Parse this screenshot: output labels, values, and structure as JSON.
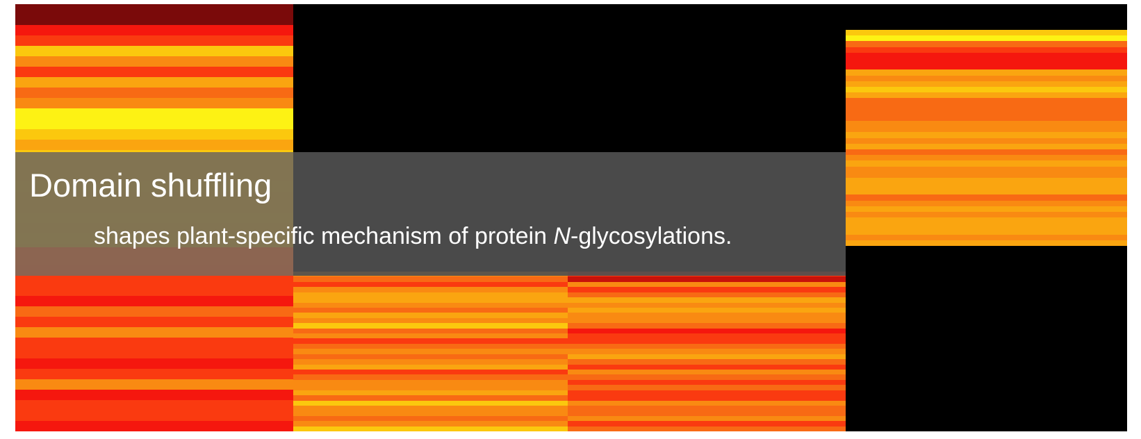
{
  "heading": {
    "title": "Domain shuffling",
    "subtitle_before": "shapes plant-specific mechanism of protein ",
    "subtitle_italic": "N",
    "subtitle_after": "-glycosylations."
  },
  "heatmap_palette": [
    "#7a0a0a",
    "#c8120a",
    "#f5170e",
    "#fa3a10",
    "#f86a14",
    "#f98a12",
    "#faa510",
    "#fbc80e",
    "#fdf214"
  ],
  "chart_data": {
    "type": "heatmap",
    "color_scale": "hot (dark red to yellow)",
    "blocks": [
      {
        "id": "top-left",
        "stripes": [
          0,
          0,
          2,
          3,
          7,
          5,
          3,
          6,
          4,
          5,
          8,
          8,
          7,
          6,
          7,
          6,
          6,
          7,
          6,
          6,
          7,
          6,
          7,
          6,
          5,
          4,
          3,
          3,
          2,
          4,
          3,
          5,
          3,
          3,
          2,
          3,
          5,
          2,
          3,
          3,
          2
        ]
      },
      {
        "id": "top-right",
        "stripes": [
          7,
          8,
          4,
          3,
          2,
          2,
          2,
          6,
          5,
          6,
          7,
          6,
          4,
          4,
          4,
          4,
          5,
          5,
          6,
          5,
          6,
          4,
          5,
          6,
          5,
          5,
          6,
          6,
          6,
          4,
          5,
          6,
          5,
          6,
          6,
          6,
          5,
          6
        ]
      },
      {
        "id": "bottom-middle",
        "stripes": [
          5,
          4,
          3,
          5,
          6,
          6,
          5,
          4,
          6,
          5,
          7,
          4,
          5,
          3,
          4,
          5,
          4,
          5,
          6,
          3,
          4,
          5,
          5,
          6,
          4,
          7,
          5,
          5,
          4,
          5,
          7
        ]
      },
      {
        "id": "bottom-right",
        "stripes": [
          3,
          1,
          5,
          3,
          4,
          6,
          5,
          6,
          5,
          5,
          4,
          2,
          3,
          3,
          4,
          5,
          6,
          4,
          3,
          5,
          4,
          3,
          4,
          3,
          3,
          5,
          4,
          4,
          5,
          3,
          4
        ]
      }
    ]
  }
}
